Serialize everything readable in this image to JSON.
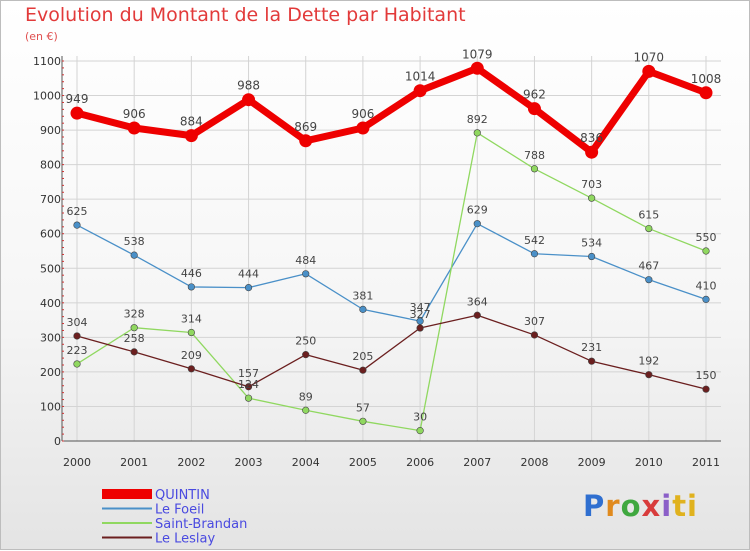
{
  "header": {
    "title": "Evolution du Montant de la Dette par Habitant",
    "unit": "(en €)"
  },
  "logo": {
    "text": "Proxiti"
  },
  "chart_data": {
    "type": "line",
    "title": "Evolution du Montant de la Dette par Habitant",
    "subtitle": "(en €)",
    "x": [
      "2000",
      "2001",
      "2002",
      "2003",
      "2004",
      "2005",
      "2006",
      "2007",
      "2008",
      "2009",
      "2010",
      "2011"
    ],
    "ylim": [
      0,
      1100
    ],
    "yticks": [
      0,
      100,
      200,
      300,
      400,
      500,
      600,
      700,
      800,
      900,
      1000,
      1100
    ],
    "grid": true,
    "legend": "bottom-left",
    "series": [
      {
        "name": "QUINTIN",
        "color": "#ee0000",
        "values": [
          949,
          906,
          884,
          988,
          869,
          906,
          1014,
          1079,
          962,
          836,
          1070,
          1008
        ]
      },
      {
        "name": "Le Foeil",
        "color": "#4a90c8",
        "values": [
          625,
          538,
          446,
          444,
          484,
          381,
          347,
          629,
          542,
          534,
          467,
          410
        ]
      },
      {
        "name": "Saint-Brandan",
        "color": "#90d860",
        "values": [
          223,
          328,
          314,
          124,
          89,
          57,
          30,
          892,
          788,
          703,
          615,
          550
        ]
      },
      {
        "name": "Le Leslay",
        "color": "#6b1f1f",
        "values": [
          304,
          258,
          209,
          157,
          250,
          205,
          327,
          364,
          307,
          231,
          192,
          150
        ]
      }
    ]
  }
}
